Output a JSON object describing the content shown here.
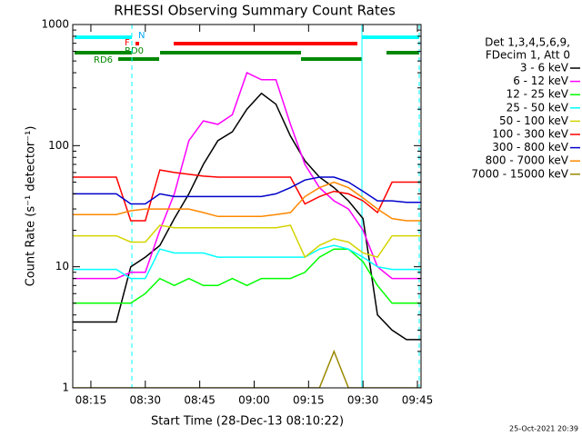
{
  "chart_data": {
    "type": "line",
    "title": "RHESSI Observing Summary Count Rates",
    "x_label": "Start Time (28-Dec-13 08:10:22)",
    "y_label": "Count Rate (s⁻¹ detector⁻¹)",
    "legend_header": [
      "Det 1,3,4,5,6,9,",
      "FDecim 1, Att 0"
    ],
    "timestamp": "25-Oct-2021 20:39",
    "flags": [
      "N",
      "F",
      "RD0",
      "RD6"
    ],
    "log_y": true,
    "xlim": [
      "08:10",
      "09:46"
    ],
    "xticks": [
      "08:15",
      "08:30",
      "08:45",
      "09:00",
      "09:15",
      "09:30",
      "09:45"
    ],
    "ylim": [
      1,
      1000
    ],
    "yticks": [
      1,
      10,
      100,
      1000
    ],
    "x": [
      "08:10",
      "08:14",
      "08:18",
      "08:22",
      "08:26",
      "08:30",
      "08:34",
      "08:38",
      "08:42",
      "08:46",
      "08:50",
      "08:54",
      "08:58",
      "09:02",
      "09:06",
      "09:10",
      "09:14",
      "09:18",
      "09:22",
      "09:26",
      "09:30",
      "09:34",
      "09:38",
      "09:42",
      "09:46"
    ],
    "series": [
      {
        "name": "3 - 6 keV",
        "color": "#000000",
        "values": [
          3.5,
          3.5,
          3.5,
          3.5,
          10,
          12,
          15,
          25,
          40,
          70,
          110,
          130,
          200,
          270,
          220,
          120,
          75,
          55,
          45,
          35,
          25,
          4,
          3,
          2.5,
          2.5
        ]
      },
      {
        "name": "6 - 12 keV",
        "color": "#ff00ff",
        "values": [
          8,
          8,
          8,
          8,
          9,
          9,
          20,
          40,
          110,
          160,
          150,
          180,
          400,
          350,
          350,
          150,
          70,
          45,
          35,
          30,
          20,
          10,
          8,
          8,
          8
        ]
      },
      {
        "name": "12 - 25 keV",
        "color": "#00ff00",
        "values": [
          5,
          5,
          5,
          5,
          5,
          6,
          8,
          7,
          8,
          7,
          7,
          8,
          7,
          8,
          8,
          8,
          9,
          12,
          14,
          14,
          11,
          7,
          5,
          5,
          5
        ]
      },
      {
        "name": "25 - 50 keV",
        "color": "#00ffff",
        "values": [
          9.5,
          9.5,
          9.5,
          9.5,
          8,
          8,
          14,
          13,
          13,
          13,
          12,
          12,
          12,
          12,
          12,
          12,
          12,
          14,
          15,
          14,
          12,
          10,
          9.5,
          9.5,
          9.5
        ]
      },
      {
        "name": "50 - 100 keV",
        "color": "#d4d400",
        "values": [
          18,
          18,
          18,
          18,
          16,
          16,
          22,
          21,
          21,
          21,
          21,
          21,
          21,
          21,
          21,
          22,
          12,
          15,
          17,
          16,
          13,
          12,
          18,
          18,
          18
        ]
      },
      {
        "name": "100 - 300 keV",
        "color": "#ff0000",
        "values": [
          55,
          55,
          55,
          55,
          24,
          24,
          63,
          60,
          58,
          56,
          55,
          55,
          55,
          55,
          55,
          55,
          33,
          38,
          42,
          40,
          35,
          28,
          50,
          50,
          50
        ]
      },
      {
        "name": "300 - 800 keV",
        "color": "#0000cc",
        "values": [
          40,
          40,
          40,
          40,
          33,
          33,
          40,
          38,
          38,
          38,
          38,
          38,
          38,
          38,
          40,
          45,
          52,
          55,
          55,
          50,
          42,
          35,
          35,
          34,
          34
        ]
      },
      {
        "name": "800 - 7000 keV",
        "color": "#ff8800",
        "values": [
          27,
          27,
          27,
          27,
          29,
          30,
          30,
          30,
          30,
          28,
          26,
          26,
          26,
          26,
          27,
          28,
          38,
          45,
          50,
          45,
          37,
          30,
          25,
          24,
          24
        ]
      },
      {
        "name": "7000 - 15000 keV",
        "color": "#998800",
        "values": [
          1,
          1,
          1,
          1,
          1,
          1,
          1,
          1,
          1,
          1,
          1,
          1,
          1,
          1,
          1,
          1,
          1,
          1,
          2,
          1,
          1,
          1,
          1,
          1,
          1
        ]
      }
    ]
  }
}
